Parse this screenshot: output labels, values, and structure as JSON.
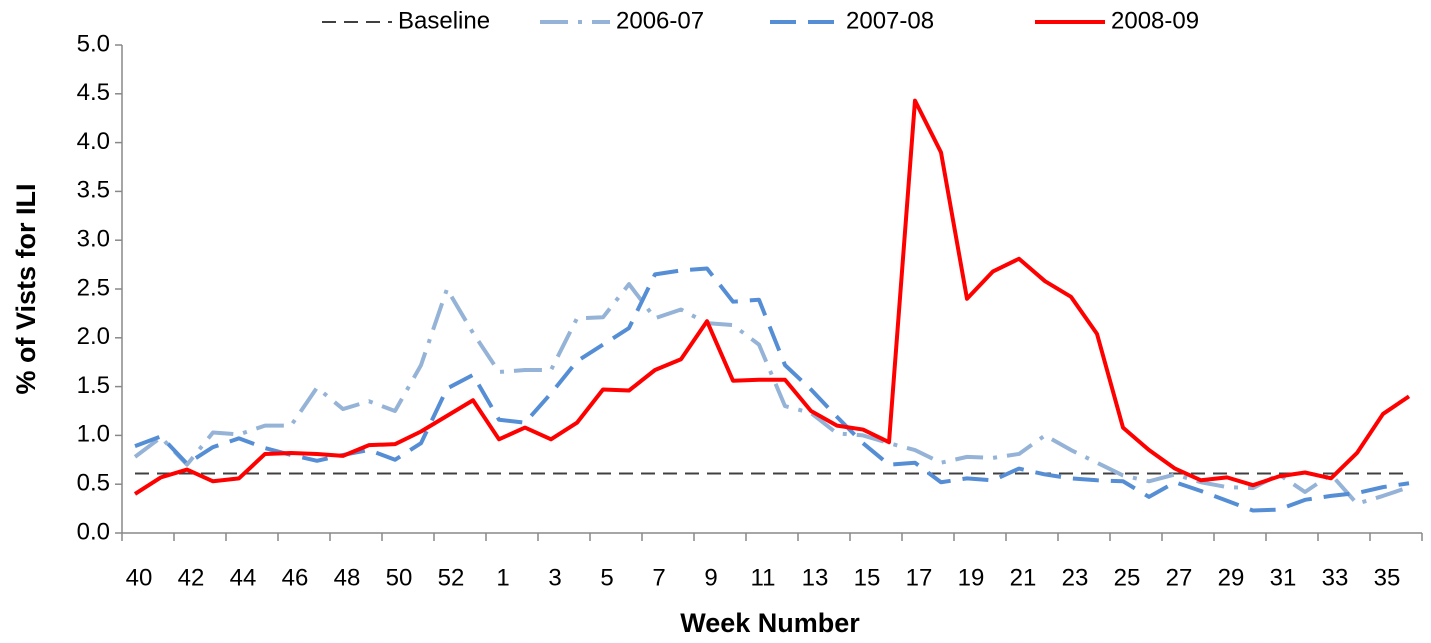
{
  "chart_data": {
    "type": "line",
    "x_label": "Week Number",
    "y_label": "% of Vists for ILI",
    "categories": [
      "40",
      null,
      "42",
      null,
      "44",
      null,
      "46",
      null,
      "48",
      null,
      "50",
      null,
      "52",
      null,
      "1",
      null,
      "3",
      null,
      "5",
      null,
      "7",
      null,
      "9",
      null,
      "11",
      null,
      "13",
      null,
      "15",
      null,
      "17",
      null,
      "19",
      null,
      "21",
      null,
      "23",
      null,
      "25",
      null,
      "27",
      null,
      "29",
      null,
      "31",
      null,
      "33",
      null,
      "35",
      null
    ],
    "series": [
      {
        "name": "Baseline",
        "color": "#404040",
        "dash": "14,8",
        "width": 2,
        "values": [
          0.61,
          0.61,
          0.61,
          0.61,
          0.61,
          0.61,
          0.61,
          0.61,
          0.61,
          0.61,
          0.61,
          0.61,
          0.61,
          0.61,
          0.61,
          0.61,
          0.61,
          0.61,
          0.61,
          0.61,
          0.61,
          0.61,
          0.61,
          0.61,
          0.61,
          0.61,
          0.61,
          0.61,
          0.61,
          0.61,
          0.61,
          0.61,
          0.61,
          0.61,
          0.61,
          0.61,
          0.61,
          0.61,
          0.61,
          0.61,
          0.61,
          0.61,
          0.61,
          0.61,
          0.61,
          0.61,
          0.61,
          0.61,
          0.61,
          0.61
        ]
      },
      {
        "name": "2006-07",
        "color": "#95b3d7",
        "dash": "28,10,4,10",
        "width": 4,
        "values": [
          0.78,
          0.98,
          0.7,
          1.03,
          1.01,
          1.1,
          1.1,
          1.49,
          1.27,
          1.35,
          1.25,
          1.72,
          2.5,
          2.05,
          1.65,
          1.67,
          1.67,
          2.2,
          2.21,
          2.55,
          2.2,
          2.29,
          2.15,
          2.13,
          1.93,
          1.3,
          1.23,
          1.02,
          1.0,
          0.92,
          0.85,
          0.72,
          0.78,
          0.77,
          0.81,
          1.0,
          0.85,
          0.72,
          0.59,
          0.53,
          0.6,
          0.52,
          0.47,
          0.46,
          0.6,
          0.42,
          0.6,
          0.3,
          0.38,
          0.47
        ]
      },
      {
        "name": "2007-08",
        "color": "#558ed5",
        "dash": "26,12",
        "width": 4,
        "values": [
          0.89,
          0.99,
          0.71,
          0.88,
          0.97,
          0.87,
          0.8,
          0.74,
          0.8,
          0.85,
          0.75,
          0.92,
          1.48,
          1.62,
          1.16,
          1.13,
          1.43,
          1.76,
          1.93,
          2.1,
          2.65,
          2.69,
          2.71,
          2.37,
          2.39,
          1.72,
          1.47,
          1.19,
          0.92,
          0.7,
          0.72,
          0.52,
          0.56,
          0.54,
          0.66,
          0.6,
          0.56,
          0.54,
          0.53,
          0.37,
          0.52,
          0.43,
          0.33,
          0.23,
          0.24,
          0.34,
          0.38,
          0.41,
          0.47,
          0.51
        ]
      },
      {
        "name": "2008-09",
        "color": "#ff0000",
        "dash": "none",
        "width": 4,
        "values": [
          0.4,
          0.57,
          0.65,
          0.53,
          0.56,
          0.81,
          0.82,
          0.81,
          0.79,
          0.9,
          0.91,
          1.04,
          1.2,
          1.36,
          0.96,
          1.08,
          0.96,
          1.13,
          1.47,
          1.46,
          1.67,
          1.78,
          2.17,
          1.56,
          1.57,
          1.57,
          1.25,
          1.1,
          1.06,
          0.93,
          4.43,
          3.9,
          2.4,
          2.68,
          2.81,
          2.58,
          2.42,
          2.04,
          1.08,
          0.85,
          0.66,
          0.54,
          0.57,
          0.49,
          0.58,
          0.62,
          0.56,
          0.82,
          1.22,
          1.4
        ]
      }
    ],
    "ylim": [
      0,
      5
    ],
    "yticks": [
      {
        "value": 0,
        "label": "0.0"
      },
      0.5,
      {
        "value": 1,
        "label": "1.0"
      },
      1.5,
      {
        "value": 2,
        "label": "2.0"
      },
      2.5,
      {
        "value": 3,
        "label": "3.0"
      },
      3.5,
      {
        "value": 4,
        "label": "4.0"
      },
      4.5,
      {
        "value": 5,
        "label": "5.0"
      }
    ],
    "grid": false,
    "legend": "top"
  }
}
